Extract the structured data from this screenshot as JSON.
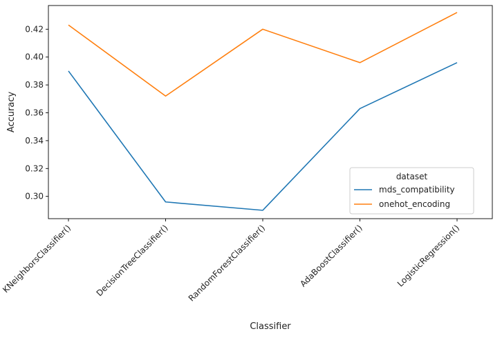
{
  "chart_data": {
    "type": "line",
    "title": "",
    "xlabel": "Classifier",
    "ylabel": "Accuracy",
    "categories": [
      "KNeighborsClassifier()",
      "DecisionTreeClassifier()",
      "RandomForestClassifier()",
      "AdaBoostClassifier()",
      "LogisticRegression()"
    ],
    "ylim": [
      0.284,
      0.437
    ],
    "yticks": [
      "0.30",
      "0.32",
      "0.34",
      "0.36",
      "0.38",
      "0.40",
      "0.42"
    ],
    "grid": false,
    "legend": {
      "title": "dataset",
      "placement": "lower-right"
    },
    "series": [
      {
        "name": "mds_compatibility",
        "color": "#1f77b4",
        "values": [
          0.39,
          0.296,
          0.29,
          0.363,
          0.396
        ]
      },
      {
        "name": "onehot_encoding",
        "color": "#ff7f0e",
        "values": [
          0.423,
          0.372,
          0.42,
          0.396,
          0.432
        ]
      }
    ]
  }
}
